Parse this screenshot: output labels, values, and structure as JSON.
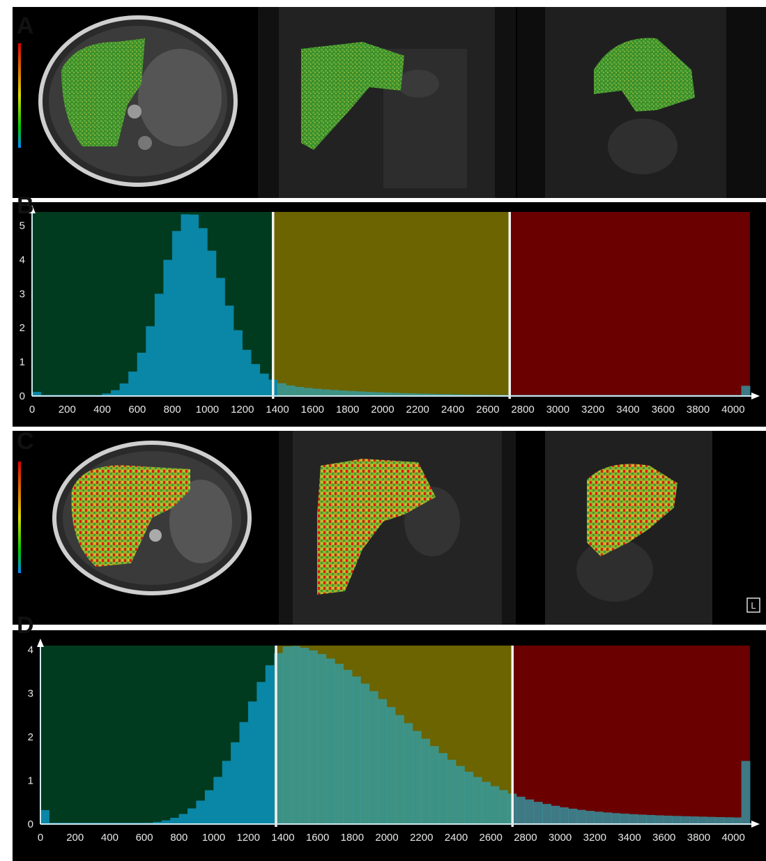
{
  "figure": {
    "panels": {
      "A": {
        "letter": "A",
        "views": [
          "axial",
          "coronal",
          "sagittal"
        ],
        "overlay_palette": "mostly-green"
      },
      "B": {
        "letter": "B"
      },
      "C": {
        "letter": "C",
        "views": [
          "axial",
          "coronal",
          "sagittal"
        ],
        "overlay_palette": "green-yellow-red"
      },
      "D": {
        "letter": "D"
      }
    },
    "overlay_icons": [
      "L-orientation-icon",
      "colorbar-icon"
    ],
    "orientation_label": "L"
  },
  "colors": {
    "zone_low": "#003b1f",
    "zone_mid": "#6b6400",
    "zone_high": "#6b0000",
    "bars": "#0a86a6",
    "bars_light": "#2fa2b0",
    "threshold": "#f2f2f2",
    "axis_text": "#e8e8e8"
  },
  "chart_data": [
    {
      "type": "bar",
      "panel": "B",
      "xlim": [
        0,
        4096
      ],
      "ylim": [
        0,
        5.4
      ],
      "xticks": [
        0,
        200,
        400,
        600,
        800,
        1000,
        1200,
        1400,
        1600,
        1800,
        2000,
        2200,
        2400,
        2600,
        2800,
        3000,
        3200,
        3400,
        3600,
        3800,
        4000
      ],
      "yticks": [
        0,
        1,
        2,
        3,
        4,
        5
      ],
      "thresholds": [
        1375,
        2725
      ],
      "peak_x": 900,
      "peak_y": 5.4,
      "end_spike": 0.3,
      "start_spike": 0.12
    },
    {
      "type": "bar",
      "panel": "D",
      "xlim": [
        0,
        4096
      ],
      "ylim": [
        0,
        4.1
      ],
      "xticks": [
        0,
        200,
        400,
        600,
        800,
        1000,
        1200,
        1400,
        1600,
        1800,
        2000,
        2200,
        2400,
        2600,
        2800,
        3000,
        3200,
        3400,
        3600,
        3800,
        4000
      ],
      "yticks": [
        0,
        1,
        2,
        3,
        4
      ],
      "thresholds": [
        1360,
        2725
      ],
      "peak_x": 1450,
      "peak_y": 4.1,
      "end_spike": 1.45,
      "start_spike": 0.32
    }
  ]
}
